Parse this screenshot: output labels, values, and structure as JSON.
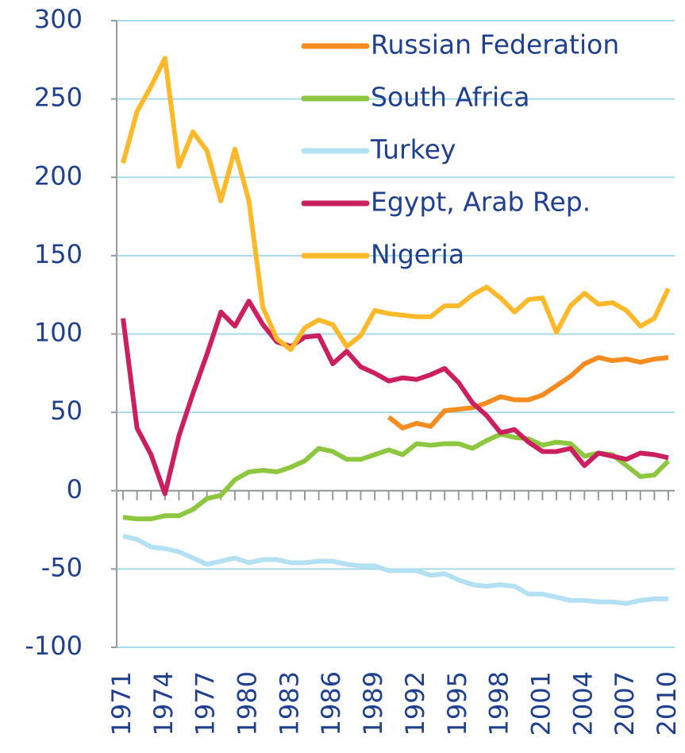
{
  "chart_data": {
    "type": "line",
    "x": [
      1971,
      1972,
      1973,
      1974,
      1975,
      1976,
      1977,
      1978,
      1979,
      1980,
      1981,
      1982,
      1983,
      1984,
      1985,
      1986,
      1987,
      1988,
      1989,
      1990,
      1991,
      1992,
      1993,
      1994,
      1995,
      1996,
      1997,
      1998,
      1999,
      2000,
      2001,
      2002,
      2003,
      2004,
      2005,
      2006,
      2007,
      2008,
      2009,
      2010
    ],
    "xlim": [
      1971,
      2010
    ],
    "xticks": [
      1971,
      1974,
      1977,
      1980,
      1983,
      1986,
      1989,
      1992,
      1995,
      1998,
      2001,
      2004,
      2007,
      2010
    ],
    "ylim": [
      -100,
      300
    ],
    "yticks": [
      -100,
      -50,
      0,
      50,
      100,
      150,
      200,
      250,
      300
    ],
    "grid": true,
    "legend": "top-right",
    "series": [
      {
        "name": "Russian Federation",
        "color": "#f68b1f",
        "values": [
          null,
          null,
          null,
          null,
          null,
          null,
          null,
          null,
          null,
          null,
          null,
          null,
          null,
          null,
          null,
          null,
          null,
          null,
          null,
          47,
          40,
          43,
          41,
          51,
          52,
          53,
          56,
          60,
          58,
          58,
          61,
          67,
          73,
          81,
          85,
          83,
          84,
          82,
          84,
          85
        ]
      },
      {
        "name": "South Africa",
        "color": "#8dc63f",
        "values": [
          -17,
          -18,
          -18,
          -16,
          -16,
          -12,
          -5,
          -3,
          7,
          12,
          13,
          12,
          15,
          19,
          27,
          25,
          20,
          20,
          23,
          26,
          23,
          30,
          29,
          30,
          30,
          27,
          32,
          36,
          34,
          33,
          29,
          31,
          30,
          22,
          24,
          23,
          16,
          9,
          10,
          19
        ]
      },
      {
        "name": "Turkey",
        "color": "#b3e0f2",
        "values": [
          -29,
          -31,
          -36,
          -37,
          -39,
          -43,
          -47,
          -45,
          -43,
          -46,
          -44,
          -44,
          -46,
          -46,
          -45,
          -45,
          -47,
          -48,
          -48,
          -51,
          -51,
          -51,
          -54,
          -53,
          -57,
          -60,
          -61,
          -60,
          -61,
          -66,
          -66,
          -68,
          -70,
          -70,
          -71,
          -71,
          -72,
          -70,
          -69,
          -69
        ]
      },
      {
        "name": "Egypt, Arab Rep.",
        "color": "#cc1f5f",
        "values": [
          110,
          40,
          23,
          -2,
          35,
          62,
          87,
          114,
          105,
          121,
          106,
          95,
          92,
          98,
          99,
          81,
          89,
          79,
          75,
          70,
          72,
          71,
          74,
          78,
          69,
          56,
          48,
          37,
          39,
          31,
          25,
          25,
          27,
          16,
          24,
          22,
          20,
          24,
          23,
          21
        ]
      },
      {
        "name": "Nigeria",
        "color": "#fdb92a",
        "values": [
          209,
          242,
          258,
          276,
          207,
          229,
          217,
          185,
          218,
          185,
          117,
          97,
          90,
          104,
          109,
          106,
          92,
          99,
          115,
          113,
          112,
          111,
          111,
          118,
          118,
          125,
          130,
          123,
          114,
          122,
          123,
          101,
          118,
          126,
          119,
          120,
          115,
          105,
          110,
          129
        ]
      }
    ]
  }
}
